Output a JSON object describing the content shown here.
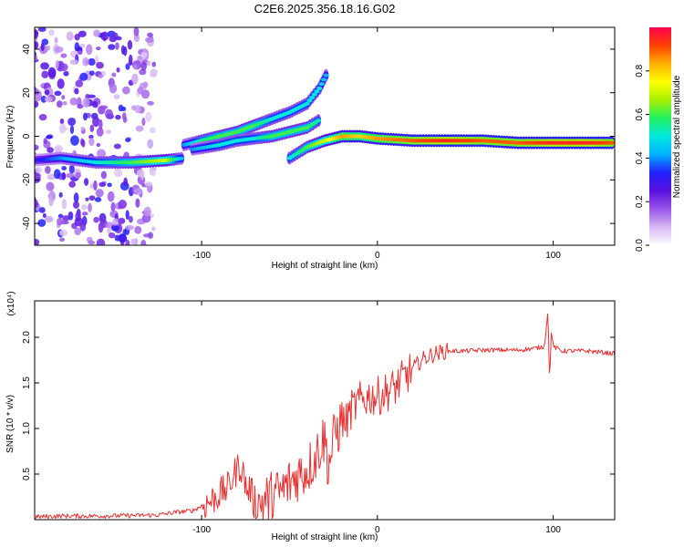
{
  "title": "C2E6.2025.356.18.16.G02",
  "spectrogram": {
    "type": "heatmap",
    "xlabel": "Height of straight line (km)",
    "ylabel": "Frequency (Hz)",
    "xlim": [
      -195,
      135
    ],
    "ylim": [
      -50,
      50
    ],
    "xticks": [
      -100,
      0,
      100
    ],
    "yticks": [
      -40,
      -20,
      0,
      20,
      40
    ],
    "colorbar": {
      "label": "Normalized spectral amplitude",
      "range": [
        0,
        1
      ],
      "ticks": [
        "0.0",
        "0.2",
        "0.4",
        "0.6",
        "0.8"
      ],
      "tick_values": [
        0,
        0.2,
        0.4,
        0.6,
        0.8
      ],
      "colors": [
        "#ffffff",
        "#d7b8f5",
        "#9a55e8",
        "#5a10e0",
        "#2020ff",
        "#00b0ff",
        "#00e8e0",
        "#20f060",
        "#a8f000",
        "#ffff00",
        "#ffb000",
        "#ff4000",
        "#ff0050"
      ]
    },
    "traces": [
      {
        "name": "flat band",
        "points": [
          [
            -195,
            -11,
            0.3
          ],
          [
            -180,
            -10,
            0.4
          ],
          [
            -160,
            -12,
            0.5
          ],
          [
            -140,
            -12,
            0.6
          ],
          [
            -120,
            -11,
            0.7
          ],
          [
            -110,
            -10,
            0.4
          ]
        ]
      },
      {
        "name": "rising branch upper",
        "points": [
          [
            -110,
            -4,
            0.4
          ],
          [
            -100,
            -2,
            0.55
          ],
          [
            -90,
            0,
            0.6
          ],
          [
            -80,
            2,
            0.6
          ],
          [
            -70,
            5,
            0.6
          ],
          [
            -60,
            8,
            0.5
          ],
          [
            -50,
            11,
            0.5
          ],
          [
            -40,
            15,
            0.5
          ],
          [
            -33,
            22,
            0.5
          ],
          [
            -28,
            30,
            0.4
          ]
        ]
      },
      {
        "name": "rising branch lower",
        "points": [
          [
            -105,
            -6,
            0.4
          ],
          [
            -90,
            -4,
            0.5
          ],
          [
            -80,
            -2,
            0.5
          ],
          [
            -70,
            -1,
            0.5
          ],
          [
            -60,
            0,
            0.6
          ],
          [
            -50,
            2,
            0.6
          ],
          [
            -40,
            4,
            0.6
          ],
          [
            -32,
            8,
            0.5
          ]
        ]
      },
      {
        "name": "converging branch",
        "points": [
          [
            -50,
            -10,
            0.5
          ],
          [
            -40,
            -5,
            0.6
          ],
          [
            -30,
            -2,
            0.7
          ],
          [
            -20,
            0,
            0.85
          ],
          [
            -10,
            0,
            0.8
          ],
          [
            0,
            -1,
            0.85
          ],
          [
            20,
            -2,
            0.9
          ],
          [
            40,
            -2,
            0.95
          ],
          [
            60,
            -2,
            0.9
          ],
          [
            80,
            -3,
            0.9
          ],
          [
            100,
            -3,
            0.95
          ],
          [
            120,
            -3,
            0.95
          ],
          [
            135,
            -3,
            0.9
          ]
        ]
      }
    ]
  },
  "chart_data": {
    "type": "line",
    "title": "C2E6.2025.356.18.16.G02",
    "xlabel": "Height of straight line (km)",
    "ylabel": "SNR (10 * v/v)",
    "yscale_label": "(x10⁴)",
    "xlim": [
      -195,
      135
    ],
    "ylim": [
      0,
      24000
    ],
    "xticks": [
      -100,
      0,
      100
    ],
    "yticks": [
      5000,
      10000,
      15000,
      20000
    ],
    "ytick_labels": [
      "0.5",
      "1.0",
      "1.5",
      "2.0"
    ],
    "color": "#e83030",
    "series": [
      {
        "name": "SNR",
        "x": [
          -195,
          -180,
          -160,
          -140,
          -125,
          -115,
          -105,
          -95,
          -90,
          -85,
          -80,
          -78,
          -76,
          -74,
          -72,
          -70,
          -65,
          -60,
          -55,
          -50,
          -45,
          -40,
          -35,
          -33,
          -30,
          -28,
          -26,
          -24,
          -22,
          -20,
          -18,
          -15,
          -10,
          -5,
          0,
          5,
          10,
          15,
          20,
          25,
          30,
          35,
          40,
          45,
          50,
          60,
          70,
          80,
          90,
          95,
          96,
          97,
          98,
          99,
          100,
          105,
          110,
          120,
          130,
          135
        ],
        "y": [
          300,
          400,
          400,
          450,
          500,
          800,
          1000,
          2000,
          2800,
          3500,
          5500,
          6000,
          4800,
          3000,
          3500,
          1500,
          2000,
          2500,
          3000,
          4000,
          5000,
          5500,
          7000,
          8000,
          9000,
          6000,
          7500,
          9500,
          10000,
          11000,
          10500,
          12000,
          13000,
          13500,
          13500,
          14000,
          14500,
          15500,
          16500,
          17500,
          18000,
          18300,
          18500,
          18500,
          18500,
          18600,
          18600,
          18600,
          18800,
          19000,
          21000,
          23000,
          15000,
          21000,
          19000,
          18500,
          18500,
          18500,
          18300,
          18200
        ]
      }
    ]
  }
}
